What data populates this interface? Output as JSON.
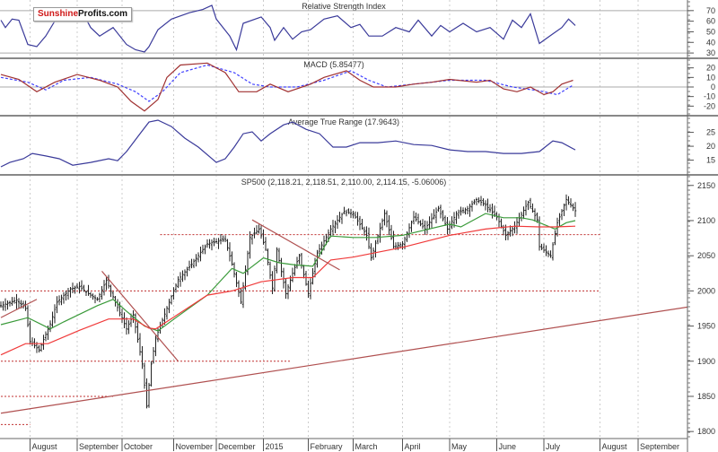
{
  "logo": {
    "part1": "Sunshine",
    "part2": "Profits.com"
  },
  "chart_data": {
    "type": "ohlc",
    "x_unit": "trading day index",
    "months": [
      {
        "label": "August",
        "day": 13
      },
      {
        "label": "September",
        "day": 34
      },
      {
        "label": "October",
        "day": 54
      },
      {
        "label": "November",
        "day": 77
      },
      {
        "label": "December",
        "day": 96
      },
      {
        "label": "2015",
        "day": 117
      },
      {
        "label": "February",
        "day": 137
      },
      {
        "label": "March",
        "day": 157
      },
      {
        "label": "April",
        "day": 179
      },
      {
        "label": "May",
        "day": 200
      },
      {
        "label": "June",
        "day": 221
      },
      {
        "label": "July",
        "day": 242
      },
      {
        "label": "August",
        "day": 267
      },
      {
        "label": "September",
        "day": 284
      }
    ],
    "rsi": {
      "title": "Relative Strength Index",
      "ylim": [
        25,
        80
      ],
      "ticks": [
        70,
        60,
        50,
        40,
        30
      ],
      "levels": [
        70,
        30
      ],
      "color": "#3a3a9a",
      "points": [
        [
          0,
          61
        ],
        [
          2,
          54
        ],
        [
          5,
          62
        ],
        [
          8,
          61
        ],
        [
          12,
          38
        ],
        [
          16,
          36
        ],
        [
          20,
          46
        ],
        [
          24,
          60
        ],
        [
          28,
          67
        ],
        [
          32,
          71
        ],
        [
          38,
          62
        ],
        [
          40,
          54
        ],
        [
          44,
          46
        ],
        [
          50,
          54
        ],
        [
          56,
          38
        ],
        [
          60,
          33
        ],
        [
          64,
          31
        ],
        [
          66,
          36
        ],
        [
          70,
          52
        ],
        [
          76,
          62
        ],
        [
          84,
          68
        ],
        [
          90,
          71
        ],
        [
          94,
          75
        ],
        [
          96,
          62
        ],
        [
          102,
          46
        ],
        [
          105,
          33
        ],
        [
          108,
          58
        ],
        [
          116,
          64
        ],
        [
          120,
          54
        ],
        [
          122,
          42
        ],
        [
          126,
          54
        ],
        [
          130,
          43
        ],
        [
          134,
          50
        ],
        [
          138,
          52
        ],
        [
          144,
          62
        ],
        [
          150,
          65
        ],
        [
          156,
          54
        ],
        [
          160,
          57
        ],
        [
          164,
          46
        ],
        [
          170,
          46
        ],
        [
          176,
          54
        ],
        [
          182,
          50
        ],
        [
          186,
          61
        ],
        [
          192,
          46
        ],
        [
          196,
          56
        ],
        [
          200,
          50
        ],
        [
          206,
          58
        ],
        [
          212,
          50
        ],
        [
          218,
          54
        ],
        [
          224,
          43
        ],
        [
          228,
          61
        ],
        [
          232,
          54
        ],
        [
          236,
          67
        ],
        [
          240,
          39
        ],
        [
          242,
          42
        ],
        [
          246,
          48
        ],
        [
          250,
          54
        ],
        [
          253,
          62
        ],
        [
          256,
          56
        ]
      ]
    },
    "macd": {
      "title": "MACD (5.85477)",
      "ylim": [
        -30,
        30
      ],
      "ticks": [
        20,
        10,
        0,
        -10,
        -20
      ],
      "macd_color": "#a03030",
      "signal_color": "#4040ff",
      "macd": [
        [
          0,
          13
        ],
        [
          8,
          8
        ],
        [
          16,
          -5
        ],
        [
          24,
          5
        ],
        [
          34,
          13
        ],
        [
          44,
          7
        ],
        [
          52,
          0
        ],
        [
          58,
          -15
        ],
        [
          64,
          -25
        ],
        [
          70,
          -13
        ],
        [
          74,
          10
        ],
        [
          80,
          23
        ],
        [
          92,
          25
        ],
        [
          100,
          15
        ],
        [
          106,
          -5
        ],
        [
          114,
          -5
        ],
        [
          120,
          3
        ],
        [
          128,
          -5
        ],
        [
          138,
          3
        ],
        [
          144,
          10
        ],
        [
          154,
          17
        ],
        [
          160,
          7
        ],
        [
          166,
          0
        ],
        [
          176,
          0
        ],
        [
          184,
          3
        ],
        [
          192,
          5
        ],
        [
          200,
          8
        ],
        [
          212,
          5
        ],
        [
          218,
          7
        ],
        [
          224,
          -2
        ],
        [
          230,
          -5
        ],
        [
          236,
          0
        ],
        [
          242,
          -8
        ],
        [
          246,
          -5
        ],
        [
          250,
          3
        ],
        [
          255,
          7
        ]
      ],
      "signal": [
        [
          0,
          10
        ],
        [
          12,
          5
        ],
        [
          20,
          -3
        ],
        [
          28,
          7
        ],
        [
          40,
          10
        ],
        [
          52,
          3
        ],
        [
          60,
          -5
        ],
        [
          66,
          -15
        ],
        [
          72,
          -5
        ],
        [
          80,
          15
        ],
        [
          92,
          23
        ],
        [
          104,
          15
        ],
        [
          112,
          3
        ],
        [
          120,
          0
        ],
        [
          132,
          0
        ],
        [
          144,
          7
        ],
        [
          156,
          17
        ],
        [
          164,
          7
        ],
        [
          172,
          0
        ],
        [
          184,
          3
        ],
        [
          200,
          7
        ],
        [
          216,
          7
        ],
        [
          228,
          0
        ],
        [
          240,
          -4
        ],
        [
          248,
          -8
        ],
        [
          255,
          2
        ]
      ]
    },
    "atr": {
      "title": "Average True Range (17.9643)",
      "ylim": [
        9.7,
        31
      ],
      "ticks": [
        25,
        20,
        15
      ],
      "color": "#3a3a9a",
      "points": [
        [
          0,
          12.6
        ],
        [
          4,
          14.2
        ],
        [
          10,
          15.5
        ],
        [
          14,
          17.4
        ],
        [
          20,
          16.5
        ],
        [
          26,
          15.5
        ],
        [
          32,
          13.2
        ],
        [
          40,
          14.2
        ],
        [
          48,
          15.5
        ],
        [
          52,
          14.8
        ],
        [
          56,
          18.1
        ],
        [
          62,
          24.5
        ],
        [
          66,
          28.7
        ],
        [
          70,
          29.4
        ],
        [
          76,
          27.1
        ],
        [
          82,
          22.9
        ],
        [
          88,
          19.7
        ],
        [
          96,
          14.2
        ],
        [
          100,
          15.5
        ],
        [
          104,
          19.7
        ],
        [
          108,
          24.5
        ],
        [
          112,
          25.2
        ],
        [
          116,
          21.9
        ],
        [
          120,
          24.5
        ],
        [
          126,
          27.7
        ],
        [
          130,
          28.7
        ],
        [
          136,
          26.1
        ],
        [
          142,
          24.5
        ],
        [
          148,
          19.7
        ],
        [
          154,
          19.7
        ],
        [
          160,
          21.3
        ],
        [
          168,
          21.3
        ],
        [
          176,
          21.9
        ],
        [
          184,
          20.6
        ],
        [
          192,
          20.3
        ],
        [
          200,
          18.7
        ],
        [
          208,
          18.1
        ],
        [
          216,
          18.1
        ],
        [
          224,
          17.4
        ],
        [
          232,
          17.4
        ],
        [
          240,
          18.1
        ],
        [
          246,
          21.9
        ],
        [
          250,
          21.3
        ],
        [
          256,
          18.7
        ]
      ]
    },
    "price": {
      "title": "SP500 (2,118.21, 2,118.51, 2,110.00, 2,114.15, -5.06006)",
      "ylim": [
        1790,
        2165
      ],
      "ticks": [
        2150,
        2100,
        2050,
        2000,
        1950,
        1900,
        1850,
        1800
      ],
      "bar_color": "#222222",
      "close_points": [
        [
          0,
          1979
        ],
        [
          7,
          1987
        ],
        [
          11,
          1975
        ],
        [
          13,
          1928
        ],
        [
          17,
          1916
        ],
        [
          22,
          1953
        ],
        [
          25,
          1984
        ],
        [
          31,
          2003
        ],
        [
          35,
          2006
        ],
        [
          39,
          1996
        ],
        [
          43,
          1988
        ],
        [
          47,
          2015
        ],
        [
          51,
          1984
        ],
        [
          56,
          1946
        ],
        [
          59,
          1966
        ],
        [
          63,
          1896
        ],
        [
          65,
          1836
        ],
        [
          67,
          1896
        ],
        [
          69,
          1933
        ],
        [
          75,
          1984
        ],
        [
          79,
          2016
        ],
        [
          85,
          2038
        ],
        [
          92,
          2067
        ],
        [
          100,
          2073
        ],
        [
          103,
          2038
        ],
        [
          107,
          1984
        ],
        [
          111,
          2076
        ],
        [
          115,
          2088
        ],
        [
          118,
          2059
        ],
        [
          121,
          2004
        ],
        [
          123,
          2059
        ],
        [
          127,
          1996
        ],
        [
          130,
          2025
        ],
        [
          133,
          2050
        ],
        [
          137,
          1996
        ],
        [
          141,
          2054
        ],
        [
          147,
          2088
        ],
        [
          153,
          2113
        ],
        [
          157,
          2110
        ],
        [
          163,
          2079
        ],
        [
          165,
          2047
        ],
        [
          171,
          2110
        ],
        [
          175,
          2063
        ],
        [
          179,
          2067
        ],
        [
          184,
          2105
        ],
        [
          189,
          2088
        ],
        [
          195,
          2117
        ],
        [
          199,
          2088
        ],
        [
          203,
          2110
        ],
        [
          208,
          2117
        ],
        [
          212,
          2130
        ],
        [
          216,
          2122
        ],
        [
          221,
          2105
        ],
        [
          225,
          2079
        ],
        [
          229,
          2092
        ],
        [
          235,
          2126
        ],
        [
          239,
          2101
        ],
        [
          240,
          2063
        ],
        [
          245,
          2050
        ],
        [
          248,
          2097
        ],
        [
          252,
          2130
        ],
        [
          256,
          2114
        ]
      ],
      "ma_short": {
        "color": "#3a9a3a",
        "points": [
          [
            0,
            1952
          ],
          [
            12,
            1962
          ],
          [
            22,
            1946
          ],
          [
            28,
            1956
          ],
          [
            43,
            1979
          ],
          [
            50,
            1988
          ],
          [
            56,
            1971
          ],
          [
            64,
            1950
          ],
          [
            70,
            1943
          ],
          [
            78,
            1962
          ],
          [
            92,
            1994
          ],
          [
            103,
            2032
          ],
          [
            108,
            2025
          ],
          [
            117,
            2047
          ],
          [
            124,
            2040
          ],
          [
            131,
            2037
          ],
          [
            139,
            2035
          ],
          [
            147,
            2078
          ],
          [
            157,
            2076
          ],
          [
            167,
            2076
          ],
          [
            179,
            2079
          ],
          [
            200,
            2095
          ],
          [
            205,
            2091
          ],
          [
            216,
            2110
          ],
          [
            224,
            2104
          ],
          [
            232,
            2104
          ],
          [
            237,
            2101
          ],
          [
            247,
            2088
          ],
          [
            252,
            2097
          ],
          [
            256,
            2100
          ]
        ]
      },
      "ma_long": {
        "color": "#f03a3a",
        "points": [
          [
            0,
            1909
          ],
          [
            11,
            1925
          ],
          [
            21,
            1925
          ],
          [
            35,
            1944
          ],
          [
            48,
            1960
          ],
          [
            59,
            1960
          ],
          [
            66,
            1947
          ],
          [
            69,
            1946
          ],
          [
            80,
            1969
          ],
          [
            92,
            1994
          ],
          [
            103,
            2000
          ],
          [
            116,
            2013
          ],
          [
            130,
            2019
          ],
          [
            139,
            2019
          ],
          [
            147,
            2044
          ],
          [
            157,
            2048
          ],
          [
            179,
            2062
          ],
          [
            200,
            2079
          ],
          [
            216,
            2088
          ],
          [
            229,
            2092
          ],
          [
            240,
            2091
          ],
          [
            247,
            2091
          ],
          [
            256,
            2092
          ]
        ]
      },
      "trendlines": [
        {
          "from": [
            0,
            1826
          ],
          "to": [
            306,
            1977
          ],
          "color": "#b05050"
        },
        {
          "from": [
            0,
            1962
          ],
          "to": [
            16,
            1988
          ],
          "color": "#b05050"
        },
        {
          "from": [
            45,
            2028
          ],
          "to": [
            79,
            1900
          ],
          "color": "#b05050"
        },
        {
          "from": [
            112,
            2101
          ],
          "to": [
            151,
            2030
          ],
          "color": "#b05050"
        }
      ],
      "levels": [
        {
          "value": 2080,
          "from": 71,
          "to": 267
        },
        {
          "value": 2000,
          "from": 0,
          "to": 267
        },
        {
          "value": 1900,
          "from": 0,
          "to": 129
        },
        {
          "value": 1850,
          "from": 0,
          "to": 50
        },
        {
          "value": 1810,
          "from": 0,
          "to": 13
        }
      ],
      "level_color": "#c03030"
    }
  }
}
